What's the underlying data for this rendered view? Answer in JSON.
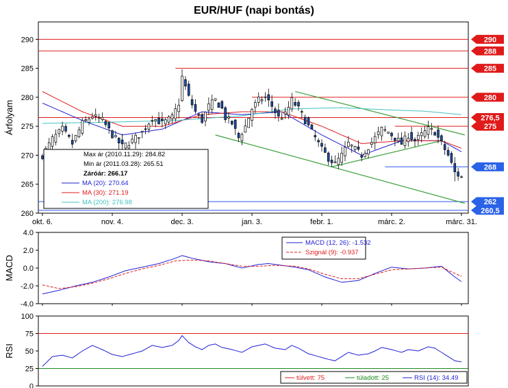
{
  "chart_data": [
    {
      "type": "candlestick",
      "title": "EUR/HUF (napi bontás)",
      "ylabel": "Árfolyam",
      "ylim": [
        260,
        293
      ],
      "yticks": [
        260,
        265,
        270,
        275,
        280,
        285,
        290
      ],
      "x_ticks": [
        {
          "label": "okt. 6.",
          "index": 0
        },
        {
          "label": "nov. 4.",
          "index": 21
        },
        {
          "label": "dec. 3.",
          "index": 42
        },
        {
          "label": "jan. 3.",
          "index": 63
        },
        {
          "label": "febr. 1.",
          "index": 84
        },
        {
          "label": "márc. 2.",
          "index": 105
        },
        {
          "label": "márc. 31.",
          "index": 126
        }
      ],
      "n_days": 127,
      "close_anchors": [
        [
          0,
          270
        ],
        [
          3,
          272.8
        ],
        [
          6,
          274.5
        ],
        [
          9,
          272
        ],
        [
          12,
          275.5
        ],
        [
          15,
          276.8
        ],
        [
          18,
          276
        ],
        [
          21,
          273.5
        ],
        [
          24,
          271.5
        ],
        [
          27,
          272.5
        ],
        [
          30,
          274
        ],
        [
          33,
          276.5
        ],
        [
          36,
          275.5
        ],
        [
          39,
          276.5
        ],
        [
          41,
          279
        ],
        [
          42,
          283.5
        ],
        [
          44,
          280
        ],
        [
          46,
          277.5
        ],
        [
          48,
          276
        ],
        [
          50,
          278.5
        ],
        [
          52,
          279.5
        ],
        [
          54,
          278
        ],
        [
          55,
          276.5
        ],
        [
          57,
          275.5
        ],
        [
          59,
          273
        ],
        [
          61,
          275
        ],
        [
          63,
          278
        ],
        [
          65,
          279.5
        ],
        [
          67,
          280
        ],
        [
          69,
          278.5
        ],
        [
          71,
          276.5
        ],
        [
          73,
          277
        ],
        [
          75,
          279.5
        ],
        [
          77,
          278
        ],
        [
          79,
          276
        ],
        [
          81,
          274
        ],
        [
          83,
          272
        ],
        [
          84,
          271
        ],
        [
          86,
          269.5
        ],
        [
          88,
          268.5
        ],
        [
          90,
          270
        ],
        [
          92,
          272
        ],
        [
          94,
          271
        ],
        [
          96,
          270
        ],
        [
          98,
          271.5
        ],
        [
          100,
          273
        ],
        [
          102,
          274.5
        ],
        [
          104,
          274
        ],
        [
          106,
          273
        ],
        [
          108,
          272
        ],
        [
          110,
          273.5
        ],
        [
          112,
          272.5
        ],
        [
          114,
          273.5
        ],
        [
          116,
          274.5
        ],
        [
          118,
          274
        ],
        [
          120,
          272
        ],
        [
          122,
          270
        ],
        [
          124,
          267
        ],
        [
          126,
          266.2
        ]
      ],
      "ohlc_sample": [
        {
          "index": 42,
          "high": 284.82
        },
        {
          "index": 124,
          "low": 265.51
        }
      ],
      "moving_averages": [
        {
          "name": "MA (20)",
          "value": 270.64,
          "color": "#1f1fd6",
          "anchors": [
            [
              0,
              279
            ],
            [
              12,
              276
            ],
            [
              24,
              273.5
            ],
            [
              36,
              274.5
            ],
            [
              48,
              277.5
            ],
            [
              60,
              277
            ],
            [
              72,
              277.5
            ],
            [
              84,
              273.5
            ],
            [
              96,
              270
            ],
            [
              108,
              272.5
            ],
            [
              120,
              272.5
            ],
            [
              126,
              270.6
            ]
          ]
        },
        {
          "name": "MA (30)",
          "value": 271.19,
          "color": "#e01a1a",
          "anchors": [
            [
              0,
              281
            ],
            [
              12,
              277.5
            ],
            [
              24,
              275
            ],
            [
              36,
              275
            ],
            [
              48,
              277
            ],
            [
              60,
              277.5
            ],
            [
              72,
              277.5
            ],
            [
              84,
              275
            ],
            [
              96,
              272
            ],
            [
              108,
              272.5
            ],
            [
              120,
              272.5
            ],
            [
              126,
              271.2
            ]
          ]
        },
        {
          "name": "MA (200)",
          "value": 276.98,
          "color": "#41c2bf",
          "anchors": [
            [
              0,
              275.5
            ],
            [
              20,
              275.7
            ],
            [
              40,
              276
            ],
            [
              60,
              276.8
            ],
            [
              75,
              278
            ],
            [
              90,
              278.2
            ],
            [
              105,
              277.8
            ],
            [
              115,
              277.6
            ],
            [
              126,
              277
            ]
          ]
        }
      ],
      "horizontal_levels": [
        {
          "value": 290,
          "label": "290",
          "color": "#e01a1a",
          "tag_color": "#e01a1a"
        },
        {
          "value": 288,
          "label": "288",
          "color": "#e01a1a",
          "tag_color": "#e01a1a"
        },
        {
          "value": 285,
          "label": "285",
          "color": "#e01a1a",
          "tag_color": "#e01a1a",
          "from_index": 40
        },
        {
          "value": 280,
          "label": "280",
          "color": "#e01a1a",
          "tag_color": "#e01a1a",
          "from_index": 63
        },
        {
          "value": 276.5,
          "label": "276,5",
          "color": "#e01a1a",
          "tag_color": "#e01a1a"
        },
        {
          "value": 275,
          "label": "275",
          "color": "#e01a1a",
          "tag_color": "#e01a1a",
          "from_index": 106
        },
        {
          "value": 268,
          "label": "268",
          "color": "#3355ee",
          "tag_color": "#2a62e8",
          "from_index": 103
        },
        {
          "value": 262,
          "label": "262",
          "color": "#3355ee",
          "tag_color": "#2a62e8"
        },
        {
          "value": 260.5,
          "label": "260,5",
          "color": "#3355ee",
          "tag_color": "#2a62e8"
        }
      ],
      "trend_lines": [
        {
          "color": "#3aa03a",
          "from": [
            76,
            281
          ],
          "to": [
            127,
            273.5
          ]
        },
        {
          "color": "#3aa03a",
          "from": [
            52,
            273.5
          ],
          "to": [
            127,
            261.7
          ]
        },
        {
          "color": "#3aa03a",
          "from": [
            87,
            268
          ],
          "to": [
            120,
            272.5
          ]
        }
      ],
      "info_box": {
        "rows": [
          {
            "text": "Max ár (2010.11.29): 284.82",
            "color": "#000000",
            "bold": false
          },
          {
            "text": "Min ár (2011.03.28): 265.51",
            "color": "#000000",
            "bold": false
          },
          {
            "text": "Záróár: 266.17",
            "color": "#000000",
            "bold": true
          },
          {
            "text": "MA (20): 270.64",
            "color": "#1f1fd6",
            "bold": false,
            "swatch": "#1f1fd6"
          },
          {
            "text": "MA (30): 271.19",
            "color": "#e01a1a",
            "bold": false,
            "swatch": "#e01a1a"
          },
          {
            "text": "MA (200): 276.98",
            "color": "#41c2bf",
            "bold": false,
            "swatch": "#41c2bf"
          }
        ]
      }
    },
    {
      "type": "line",
      "ylabel": "MACD",
      "ylim": [
        -4.0,
        4.0
      ],
      "yticks": [
        -4.0,
        -2.0,
        0.0,
        2.0,
        4.0
      ],
      "ytick_labels": [
        "-4.0",
        "-2.0",
        "0.0",
        "2.0",
        "4.0"
      ],
      "series": [
        {
          "name": "MACD (12, 26): -1.532",
          "color": "#1f1fd6",
          "dash": false,
          "anchors": [
            [
              0,
              -2.9
            ],
            [
              5,
              -2.5
            ],
            [
              10,
              -2.0
            ],
            [
              15,
              -1.6
            ],
            [
              20,
              -1.0
            ],
            [
              25,
              -0.3
            ],
            [
              30,
              0.1
            ],
            [
              35,
              0.5
            ],
            [
              40,
              1.1
            ],
            [
              42,
              1.4
            ],
            [
              45,
              1.1
            ],
            [
              50,
              0.7
            ],
            [
              55,
              0.5
            ],
            [
              60,
              0.0
            ],
            [
              65,
              0.4
            ],
            [
              68,
              0.5
            ],
            [
              72,
              0.3
            ],
            [
              76,
              0.1
            ],
            [
              80,
              -0.2
            ],
            [
              85,
              -1.0
            ],
            [
              90,
              -1.6
            ],
            [
              95,
              -1.4
            ],
            [
              100,
              -0.6
            ],
            [
              105,
              0.1
            ],
            [
              110,
              -0.1
            ],
            [
              115,
              0.0
            ],
            [
              120,
              0.2
            ],
            [
              124,
              -1.0
            ],
            [
              126,
              -1.53
            ]
          ]
        },
        {
          "name": "Szignál (9): -0.937",
          "color": "#e01a1a",
          "dash": true,
          "anchors": [
            [
              0,
              -1.9
            ],
            [
              5,
              -2.3
            ],
            [
              10,
              -2.1
            ],
            [
              15,
              -1.7
            ],
            [
              20,
              -1.2
            ],
            [
              25,
              -0.6
            ],
            [
              30,
              -0.1
            ],
            [
              35,
              0.3
            ],
            [
              40,
              0.8
            ],
            [
              45,
              0.9
            ],
            [
              50,
              0.8
            ],
            [
              55,
              0.5
            ],
            [
              60,
              0.2
            ],
            [
              65,
              0.2
            ],
            [
              70,
              0.3
            ],
            [
              76,
              0.2
            ],
            [
              80,
              -0.1
            ],
            [
              85,
              -0.7
            ],
            [
              90,
              -1.2
            ],
            [
              95,
              -1.2
            ],
            [
              100,
              -0.7
            ],
            [
              105,
              -0.2
            ],
            [
              110,
              -0.1
            ],
            [
              115,
              0.0
            ],
            [
              120,
              0.1
            ],
            [
              124,
              -0.6
            ],
            [
              126,
              -0.94
            ]
          ]
        }
      ]
    },
    {
      "type": "line",
      "ylabel": "RSI",
      "ylim": [
        0,
        100
      ],
      "yticks": [
        0,
        25,
        50,
        75,
        100
      ],
      "ytick_labels": [
        "0",
        "25",
        "50",
        "75",
        "100"
      ],
      "levels": [
        {
          "name": "túlvett: 75",
          "value": 75,
          "color": "#e01a1a"
        },
        {
          "name": "túladott: 25",
          "value": 25,
          "color": "#1a8a1a"
        }
      ],
      "series": [
        {
          "name": "RSI (14): 34.49",
          "color": "#1f1fd6",
          "anchors": [
            [
              0,
              28
            ],
            [
              3,
              42
            ],
            [
              6,
              44
            ],
            [
              9,
              40
            ],
            [
              12,
              50
            ],
            [
              15,
              58
            ],
            [
              18,
              52
            ],
            [
              21,
              45
            ],
            [
              24,
              42
            ],
            [
              27,
              46
            ],
            [
              30,
              50
            ],
            [
              33,
              58
            ],
            [
              36,
              55
            ],
            [
              39,
              58
            ],
            [
              41,
              65
            ],
            [
              42,
              72
            ],
            [
              44,
              62
            ],
            [
              46,
              56
            ],
            [
              48,
              52
            ],
            [
              50,
              58
            ],
            [
              52,
              60
            ],
            [
              54,
              55
            ],
            [
              57,
              52
            ],
            [
              60,
              48
            ],
            [
              63,
              56
            ],
            [
              65,
              58
            ],
            [
              67,
              60
            ],
            [
              70,
              54
            ],
            [
              73,
              52
            ],
            [
              75,
              58
            ],
            [
              77,
              54
            ],
            [
              80,
              46
            ],
            [
              83,
              42
            ],
            [
              86,
              38
            ],
            [
              88,
              36
            ],
            [
              90,
              42
            ],
            [
              92,
              48
            ],
            [
              95,
              44
            ],
            [
              98,
              46
            ],
            [
              100,
              50
            ],
            [
              102,
              55
            ],
            [
              105,
              52
            ],
            [
              108,
              48
            ],
            [
              110,
              52
            ],
            [
              113,
              50
            ],
            [
              116,
              56
            ],
            [
              118,
              54
            ],
            [
              120,
              48
            ],
            [
              122,
              42
            ],
            [
              124,
              36
            ],
            [
              126,
              34.49
            ]
          ]
        }
      ]
    }
  ]
}
